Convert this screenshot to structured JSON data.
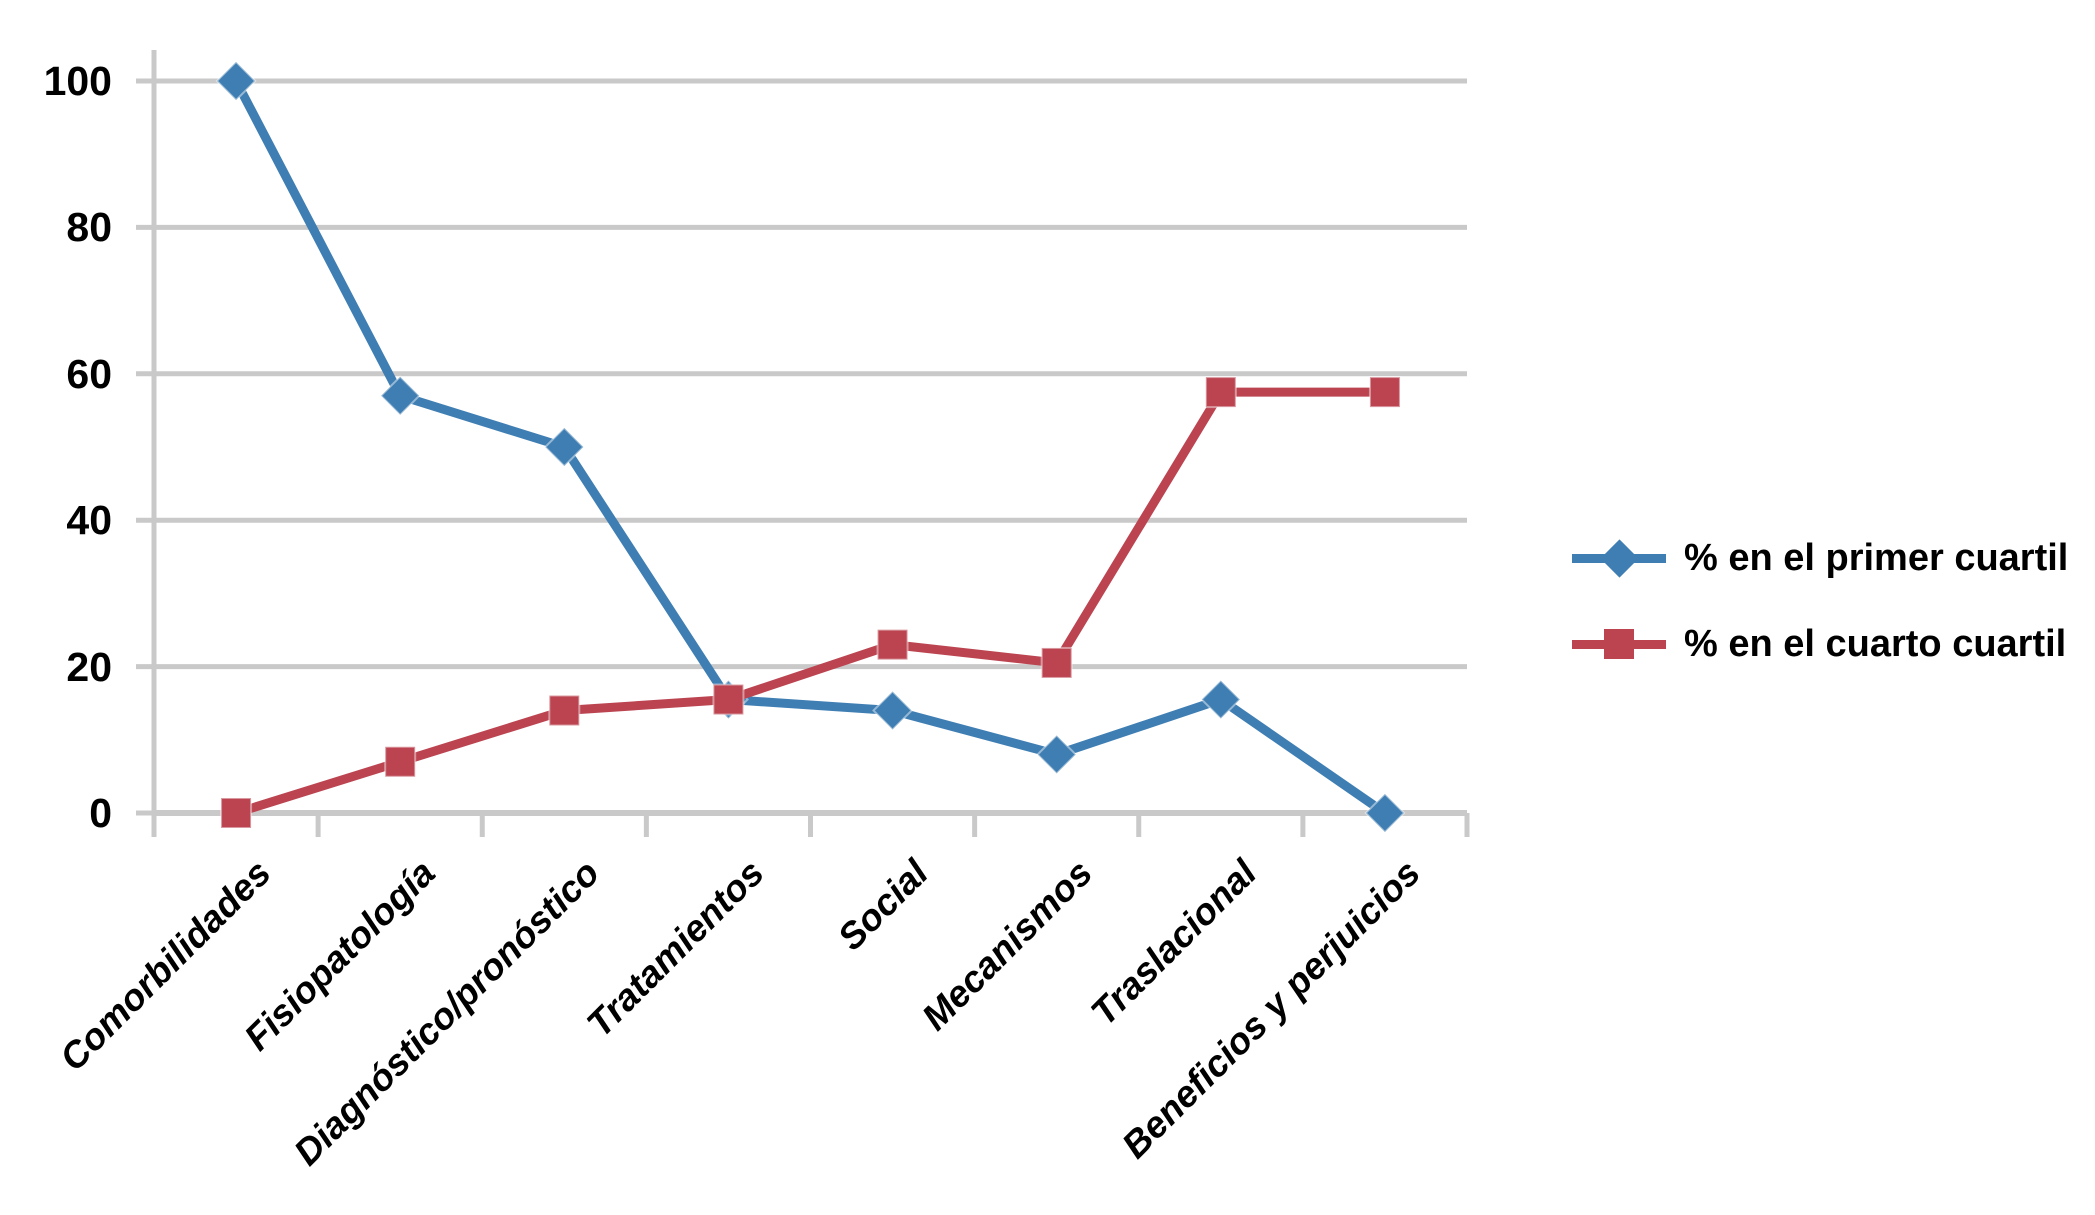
{
  "chart_data": {
    "type": "line",
    "title": "",
    "xlabel": "",
    "ylabel": "",
    "categories": [
      "Comorbilidades",
      "Fisiopatología",
      "Diagnóstico/pronóstico",
      "Tratamientos",
      "Social",
      "Mecanismos",
      "Traslacional",
      "Beneficios y perjuicios"
    ],
    "series": [
      {
        "name": "% en el primer cuartil",
        "marker": "diamond",
        "color": "#3F7EB3",
        "values": [
          100,
          57,
          50,
          15.5,
          14,
          8,
          15.5,
          0
        ]
      },
      {
        "name": "% en el cuarto cuartil",
        "marker": "square",
        "color": "#BB4450",
        "values": [
          0,
          7,
          14,
          15.5,
          23,
          20.5,
          57.5,
          57.5
        ]
      }
    ],
    "yticks": [
      0,
      20,
      40,
      60,
      80,
      100
    ],
    "ylim": [
      0,
      100
    ],
    "grid": true,
    "legend_position": "right"
  },
  "colors": {
    "gridline": "#C9C9C9",
    "background": "#FFFFFF",
    "text": "#000000"
  }
}
